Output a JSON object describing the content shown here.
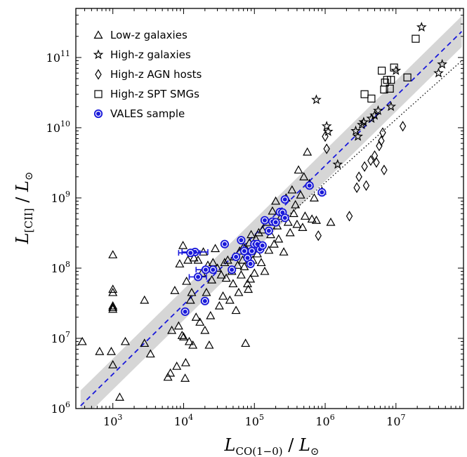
{
  "chart_data": {
    "type": "scatter",
    "title": "",
    "xscale": "log",
    "yscale": "log",
    "xlim": [
      300,
      90000000
    ],
    "ylim": [
      1000000,
      500000000000
    ],
    "x_ticks": [
      {
        "value": 1000,
        "label_base": "10",
        "label_exp": "3"
      },
      {
        "value": 10000,
        "label_base": "10",
        "label_exp": "4"
      },
      {
        "value": 100000,
        "label_base": "10",
        "label_exp": "5"
      },
      {
        "value": 1000000,
        "label_base": "10",
        "label_exp": "6"
      },
      {
        "value": 10000000,
        "label_base": "10",
        "label_exp": "7"
      }
    ],
    "y_ticks": [
      {
        "value": 1000000,
        "label_base": "10",
        "label_exp": "6"
      },
      {
        "value": 10000000,
        "label_base": "10",
        "label_exp": "7"
      },
      {
        "value": 100000000,
        "label_base": "10",
        "label_exp": "8"
      },
      {
        "value": 1000000000,
        "label_base": "10",
        "label_exp": "9"
      },
      {
        "value": 10000000000,
        "label_base": "10",
        "label_exp": "10"
      },
      {
        "value": 100000000000,
        "label_base": "10",
        "label_exp": "11"
      }
    ],
    "xlabel": {
      "main": "L",
      "sub": "CO(1−0)",
      "sep": " / ",
      "den": "L",
      "den_sub": "⊙"
    },
    "ylabel": {
      "main": "L",
      "sub": "[CII]",
      "sep": " / ",
      "den": "L",
      "den_sub": "⊙"
    },
    "legend": {
      "placement": "top-left",
      "entries": [
        {
          "label": "Low-z galaxies",
          "marker": "triangle",
          "color": "#000000"
        },
        {
          "label": "High-z galaxies",
          "marker": "star",
          "color": "#000000"
        },
        {
          "label": "High-z AGN hosts",
          "marker": "diamond",
          "color": "#000000"
        },
        {
          "label": "High-z SPT SMGs",
          "marker": "square",
          "color": "#000000"
        },
        {
          "label": "VALES sample",
          "marker": "circle-dot",
          "color": "#1a1adb"
        }
      ]
    },
    "fit": {
      "style": "dashed",
      "color": "#1a1adb",
      "x_range": [
        350,
        85000000
      ],
      "slope": 0.99,
      "intercept_log": 3.52,
      "band_half_width_dex": 0.22,
      "band_color": "#d6d6d6"
    },
    "reference_line": {
      "style": "dotted",
      "color": "#000000",
      "x_range": [
        150000,
        85000000
      ],
      "y_range": [
        300000000,
        90000000000
      ]
    },
    "series": [
      {
        "name": "Low-z galaxies",
        "marker": "triangle",
        "color": "#000000",
        "points": [
          [
            370,
            9000000.0
          ],
          [
            650,
            6500000.0
          ],
          [
            950,
            6500000.0
          ],
          [
            1000,
            4200000.0
          ],
          [
            1000,
            155000000.0
          ],
          [
            1000,
            50000000.0
          ],
          [
            1000,
            45000000.0
          ],
          [
            1000,
            29000000.0
          ],
          [
            1000,
            27500000.0
          ],
          [
            1000,
            26000000.0
          ],
          [
            1250,
            1450000.0
          ],
          [
            1500,
            9000000.0
          ],
          [
            2800,
            35000000.0
          ],
          [
            2800,
            8500000.0
          ],
          [
            3400,
            6000000.0
          ],
          [
            6000,
            2800000.0
          ],
          [
            6500,
            3200000.0
          ],
          [
            6800,
            13000000.0
          ],
          [
            7500,
            48000000.0
          ],
          [
            8000,
            4000000.0
          ],
          [
            8500,
            15000000.0
          ],
          [
            8800,
            115000000.0
          ],
          [
            9500,
            11000000.0
          ],
          [
            9800,
            210000000.0
          ],
          [
            10000,
            10500000.0
          ],
          [
            10500,
            2700000.0
          ],
          [
            10700,
            4500000.0
          ],
          [
            11000,
            65000000.0
          ],
          [
            11500,
            130000000.0
          ],
          [
            12000,
            9000000.0
          ],
          [
            12500,
            35000000.0
          ],
          [
            13000,
            45000000.0
          ],
          [
            13500,
            8000000.0
          ],
          [
            14000,
            140000000.0
          ],
          [
            15000,
            20000000.0
          ],
          [
            16000,
            130000000.0
          ],
          [
            17000,
            17000000.0
          ],
          [
            18000,
            85000000.0
          ],
          [
            19000,
            170000000.0
          ],
          [
            20000,
            13000000.0
          ],
          [
            21000,
            45000000.0
          ],
          [
            22000,
            110000000.0
          ],
          [
            23000,
            8000000.0
          ],
          [
            24000,
            21000000.0
          ],
          [
            25000,
            68000000.0
          ],
          [
            26000,
            120000000.0
          ],
          [
            28000,
            190000000.0
          ],
          [
            30000,
            100000000.0
          ],
          [
            32000,
            29000000.0
          ],
          [
            34000,
            80000000.0
          ],
          [
            36000,
            40000000.0
          ],
          [
            38000,
            120000000.0
          ],
          [
            40000,
            72000000.0
          ],
          [
            42000,
            130000000.0
          ],
          [
            45000,
            35000000.0
          ],
          [
            48000,
            90000000.0
          ],
          [
            50000,
            60000000.0
          ],
          [
            52000,
            145000000.0
          ],
          [
            55000,
            25000000.0
          ],
          [
            58000,
            110000000.0
          ],
          [
            60000,
            45000000.0
          ],
          [
            62000,
            175000000.0
          ],
          [
            65000,
            80000000.0
          ],
          [
            68000,
            130000000.0
          ],
          [
            70000,
            200000000.0
          ],
          [
            72000,
            105000000.0
          ],
          [
            75000,
            8500000.0
          ],
          [
            78000,
            180000000.0
          ],
          [
            80000,
            60000000.0
          ],
          [
            82000,
            50000000.0
          ],
          [
            85000,
            230000000.0
          ],
          [
            88000,
            70000000.0
          ],
          [
            90000,
            300000000.0
          ],
          [
            95000,
            130000000.0
          ],
          [
            100000,
            85000000.0
          ],
          [
            105000,
            260000000.0
          ],
          [
            110000,
            160000000.0
          ],
          [
            115000,
            320000000.0
          ],
          [
            120000,
            200000000.0
          ],
          [
            125000,
            120000000.0
          ],
          [
            130000,
            350000000.0
          ],
          [
            140000,
            90000000.0
          ],
          [
            150000,
            450000000.0
          ],
          [
            160000,
            180000000.0
          ],
          [
            170000,
            300000000.0
          ],
          [
            180000,
            650000000.0
          ],
          [
            190000,
            220000000.0
          ],
          [
            200000,
            900000000.0
          ],
          [
            210000,
            400000000.0
          ],
          [
            220000,
            260000000.0
          ],
          [
            240000,
            550000000.0
          ],
          [
            260000,
            170000000.0
          ],
          [
            280000,
            1000000000.0
          ],
          [
            300000,
            450000000.0
          ],
          [
            320000,
            320000000.0
          ],
          [
            340000,
            1300000000.0
          ],
          [
            360000,
            600000000.0
          ],
          [
            380000,
            800000000.0
          ],
          [
            400000,
            420000000.0
          ],
          [
            420000,
            2500000000.0
          ],
          [
            450000,
            1100000000.0
          ],
          [
            480000,
            380000000.0
          ],
          [
            500000,
            2000000000.0
          ],
          [
            520000,
            550000000.0
          ],
          [
            560000,
            4500000000.0
          ],
          [
            600000,
            1600000000.0
          ],
          [
            650000,
            500000000.0
          ],
          [
            700000,
            1000000000.0
          ],
          [
            750000,
            480000000.0
          ],
          [
            900000,
            1250000000.0
          ],
          [
            1200000,
            450000000.0
          ]
        ]
      },
      {
        "name": "High-z galaxies",
        "marker": "star",
        "color": "#000000",
        "points": [
          [
            750000,
            25000000000.0
          ],
          [
            1050000,
            10500000000.0
          ],
          [
            1100000,
            8800000000.0
          ],
          [
            1500000,
            3000000000.0
          ],
          [
            2700000,
            9000000000.0
          ],
          [
            2900000,
            7500000000.0
          ],
          [
            3300000,
            11000000000.0
          ],
          [
            3500000,
            12000000000.0
          ],
          [
            4500000,
            13500000000.0
          ],
          [
            5000000,
            15000000000.0
          ],
          [
            5600000,
            17500000000.0
          ],
          [
            8500000,
            20000000000.0
          ],
          [
            10000000,
            65000000000.0
          ],
          [
            23000000,
            270000000000.0
          ],
          [
            40000000,
            60000000000.0
          ],
          [
            45000000,
            80000000000.0
          ]
        ]
      },
      {
        "name": "High-z AGN hosts",
        "marker": "diamond",
        "color": "#000000",
        "points": [
          [
            800000,
            290000000.0
          ],
          [
            1000000,
            7500000000.0
          ],
          [
            1050000,
            5000000000.0
          ],
          [
            2200000,
            550000000.0
          ],
          [
            2800000,
            1400000000.0
          ],
          [
            3000000,
            2000000000.0
          ],
          [
            3600000,
            2800000000.0
          ],
          [
            4400000,
            3400000000.0
          ],
          [
            5000000,
            4000000000.0
          ],
          [
            5300000,
            3200000000.0
          ],
          [
            5800000,
            5500000000.0
          ],
          [
            6200000,
            6500000000.0
          ],
          [
            6500000,
            8500000000.0
          ],
          [
            6800000,
            2500000000.0
          ],
          [
            12500000,
            10500000000.0
          ],
          [
            3800000,
            1500000000.0
          ]
        ]
      },
      {
        "name": "High-z SPT SMGs",
        "marker": "square",
        "color": "#000000",
        "points": [
          [
            3600000,
            30000000000.0
          ],
          [
            4500000,
            26000000000.0
          ],
          [
            6300000,
            65000000000.0
          ],
          [
            6800000,
            35000000000.0
          ],
          [
            7000000,
            44000000000.0
          ],
          [
            7500000,
            48000000000.0
          ],
          [
            8200000,
            36000000000.0
          ],
          [
            8500000,
            48000000000.0
          ],
          [
            9400000,
            72000000000.0
          ],
          [
            14500000,
            52000000000.0
          ],
          [
            19000000,
            185000000000.0
          ]
        ]
      },
      {
        "name": "VALES sample",
        "marker": "circle-dot",
        "color": "#1a1adb",
        "points": [
          {
            "x": 10500,
            "y": 24000000.0
          },
          {
            "x": 20000,
            "y": 34000000.0
          },
          {
            "x": 14500,
            "y": 170000000.0,
            "xerr": [
              9500,
              22000
            ]
          },
          {
            "x": 12500,
            "y": 165000000.0,
            "xerr": [
              8500,
              17000
            ]
          },
          {
            "x": 20500,
            "y": 95000000.0,
            "xerr": [
              15000,
              26000
            ]
          },
          {
            "x": 16000,
            "y": 75000000.0,
            "xerr": [
              12000,
              21000
            ]
          },
          {
            "x": 26000,
            "y": 95000000.0
          },
          {
            "x": 38000,
            "y": 220000000.0
          },
          {
            "x": 48000,
            "y": 95000000.0
          },
          {
            "x": 55000,
            "y": 145000000.0
          },
          {
            "x": 65000,
            "y": 250000000.0
          },
          {
            "x": 72000,
            "y": 175000000.0
          },
          {
            "x": 80000,
            "y": 140000000.0
          },
          {
            "x": 88000,
            "y": 115000000.0
          },
          {
            "x": 92000,
            "y": 175000000.0
          },
          {
            "x": 100000,
            "y": 220000000.0
          },
          {
            "x": 110000,
            "y": 220000000.0
          },
          {
            "x": 120000,
            "y": 185000000.0
          },
          {
            "x": 130000,
            "y": 210000000.0
          },
          {
            "x": 140000,
            "y": 480000000.0
          },
          {
            "x": 160000,
            "y": 340000000.0
          },
          {
            "x": 180000,
            "y": 460000000.0
          },
          {
            "x": 200000,
            "y": 450000000.0
          },
          {
            "x": 230000,
            "y": 630000000.0
          },
          {
            "x": 250000,
            "y": 620000000.0
          },
          {
            "x": 270000,
            "y": 520000000.0
          },
          {
            "x": 270000,
            "y": 950000000.0
          },
          {
            "x": 600000,
            "y": 1500000000.0
          },
          {
            "x": 900000,
            "y": 1200000000.0
          }
        ]
      }
    ]
  }
}
